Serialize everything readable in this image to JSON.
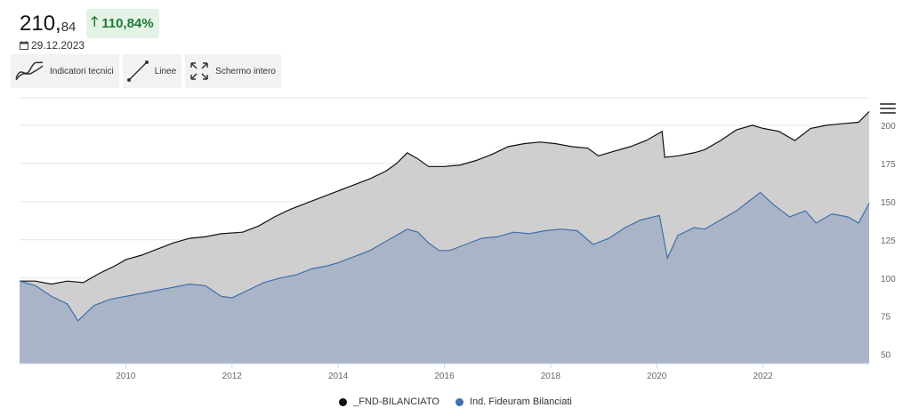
{
  "header": {
    "price_integer": "210,",
    "price_decimal": "84",
    "performance": "110,84%",
    "date": "29.12.2023"
  },
  "toolbar": {
    "indicators_label": "Indicatori tecnici",
    "lines_label": "Linee",
    "fullscreen_label": "Schermo intero"
  },
  "colors": {
    "fund_line": "#111111",
    "fund_area": "#cfcfcf",
    "index_line": "#3f6fad",
    "index_area": "#a9b5c6",
    "positive": "#1f7a34"
  },
  "chart_data": {
    "type": "area",
    "x_ticks": [
      2010,
      2012,
      2014,
      2016,
      2018,
      2020,
      2022
    ],
    "y_ticks": [
      50,
      75,
      100,
      125,
      150,
      175,
      200
    ],
    "xlim": [
      2008.0,
      2024.0
    ],
    "ylim": [
      44,
      218
    ],
    "grid": "horizontal",
    "legend_position": "bottom",
    "series": [
      {
        "name": "_FND-BILANCIATO",
        "points": [
          [
            2008.0,
            98
          ],
          [
            2008.3,
            98
          ],
          [
            2008.6,
            96
          ],
          [
            2008.9,
            98
          ],
          [
            2009.2,
            97
          ],
          [
            2009.5,
            103
          ],
          [
            2009.8,
            108
          ],
          [
            2010.0,
            112
          ],
          [
            2010.3,
            115
          ],
          [
            2010.6,
            119
          ],
          [
            2010.9,
            123
          ],
          [
            2011.2,
            126
          ],
          [
            2011.5,
            127
          ],
          [
            2011.8,
            129
          ],
          [
            2012.2,
            130
          ],
          [
            2012.5,
            134
          ],
          [
            2012.8,
            140
          ],
          [
            2013.1,
            145
          ],
          [
            2013.4,
            149
          ],
          [
            2013.7,
            153
          ],
          [
            2014.0,
            157
          ],
          [
            2014.3,
            161
          ],
          [
            2014.6,
            165
          ],
          [
            2014.9,
            170
          ],
          [
            2015.1,
            175
          ],
          [
            2015.3,
            182
          ],
          [
            2015.5,
            178
          ],
          [
            2015.7,
            173
          ],
          [
            2016.0,
            173
          ],
          [
            2016.3,
            174
          ],
          [
            2016.6,
            177
          ],
          [
            2016.9,
            181
          ],
          [
            2017.2,
            186
          ],
          [
            2017.5,
            188
          ],
          [
            2017.8,
            189
          ],
          [
            2018.1,
            188
          ],
          [
            2018.4,
            186
          ],
          [
            2018.7,
            185
          ],
          [
            2018.9,
            180
          ],
          [
            2019.2,
            183
          ],
          [
            2019.5,
            186
          ],
          [
            2019.8,
            190
          ],
          [
            2020.1,
            196
          ],
          [
            2020.15,
            179
          ],
          [
            2020.4,
            180
          ],
          [
            2020.7,
            182
          ],
          [
            2020.9,
            184
          ],
          [
            2021.2,
            190
          ],
          [
            2021.5,
            197
          ],
          [
            2021.8,
            200
          ],
          [
            2022.0,
            198
          ],
          [
            2022.3,
            196
          ],
          [
            2022.6,
            190
          ],
          [
            2022.9,
            198
          ],
          [
            2023.2,
            200
          ],
          [
            2023.5,
            201
          ],
          [
            2023.8,
            202
          ],
          [
            2024.0,
            209
          ]
        ]
      },
      {
        "name": "Ind. Fideuram Bilanciati",
        "points": [
          [
            2008.0,
            98
          ],
          [
            2008.3,
            95
          ],
          [
            2008.6,
            88
          ],
          [
            2008.9,
            83
          ],
          [
            2009.1,
            72
          ],
          [
            2009.4,
            82
          ],
          [
            2009.7,
            86
          ],
          [
            2010.0,
            88
          ],
          [
            2010.3,
            90
          ],
          [
            2010.6,
            92
          ],
          [
            2010.9,
            94
          ],
          [
            2011.2,
            96
          ],
          [
            2011.5,
            95
          ],
          [
            2011.8,
            88
          ],
          [
            2012.0,
            87
          ],
          [
            2012.3,
            92
          ],
          [
            2012.6,
            97
          ],
          [
            2012.9,
            100
          ],
          [
            2013.2,
            102
          ],
          [
            2013.5,
            106
          ],
          [
            2013.8,
            108
          ],
          [
            2014.0,
            110
          ],
          [
            2014.3,
            114
          ],
          [
            2014.6,
            118
          ],
          [
            2014.9,
            124
          ],
          [
            2015.1,
            128
          ],
          [
            2015.3,
            132
          ],
          [
            2015.5,
            130
          ],
          [
            2015.7,
            123
          ],
          [
            2015.9,
            118
          ],
          [
            2016.1,
            118
          ],
          [
            2016.4,
            122
          ],
          [
            2016.7,
            126
          ],
          [
            2017.0,
            127
          ],
          [
            2017.3,
            130
          ],
          [
            2017.6,
            129
          ],
          [
            2017.9,
            131
          ],
          [
            2018.2,
            132
          ],
          [
            2018.5,
            131
          ],
          [
            2018.8,
            122
          ],
          [
            2019.1,
            126
          ],
          [
            2019.4,
            133
          ],
          [
            2019.7,
            138
          ],
          [
            2020.05,
            141
          ],
          [
            2020.2,
            113
          ],
          [
            2020.4,
            128
          ],
          [
            2020.7,
            133
          ],
          [
            2020.9,
            132
          ],
          [
            2021.2,
            138
          ],
          [
            2021.5,
            144
          ],
          [
            2021.8,
            152
          ],
          [
            2021.95,
            156
          ],
          [
            2022.2,
            148
          ],
          [
            2022.5,
            140
          ],
          [
            2022.8,
            144
          ],
          [
            2023.0,
            136
          ],
          [
            2023.3,
            142
          ],
          [
            2023.6,
            140
          ],
          [
            2023.8,
            136
          ],
          [
            2024.0,
            149
          ]
        ]
      }
    ]
  }
}
